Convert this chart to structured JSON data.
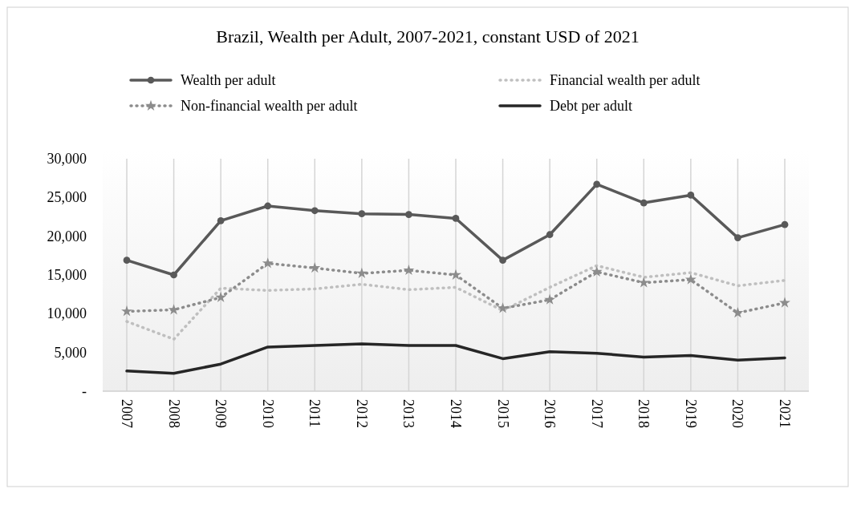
{
  "chart_data": {
    "type": "line",
    "title": "Brazil, Wealth per Adult, 2007-2021, constant USD of 2021",
    "categories": [
      "2007",
      "2008",
      "2009",
      "2010",
      "2011",
      "2012",
      "2013",
      "2014",
      "2015",
      "2016",
      "2017",
      "2018",
      "2019",
      "2020",
      "2021"
    ],
    "series": [
      {
        "name": "Wealth per adult",
        "color": "#595959",
        "marker": "circle",
        "line_style": "solid",
        "values": [
          16900,
          15000,
          22000,
          23900,
          23300,
          22900,
          22800,
          22300,
          16900,
          20200,
          26700,
          24300,
          25300,
          19800,
          21500
        ]
      },
      {
        "name": "Financial wealth per adult",
        "color": "#bfbfbf",
        "marker": "none",
        "line_style": "dotted",
        "values": [
          9000,
          6700,
          13300,
          13000,
          13200,
          13800,
          13100,
          13400,
          10400,
          13400,
          16200,
          14700,
          15300,
          13600,
          14300
        ]
      },
      {
        "name": "Non-financial wealth per adult",
        "color": "#8c8c8c",
        "marker": "star",
        "line_style": "dotted",
        "values": [
          10300,
          10500,
          12100,
          16500,
          15900,
          15200,
          15600,
          15000,
          10700,
          11800,
          15400,
          14000,
          14400,
          10100,
          11400
        ]
      },
      {
        "name": "Debt per adult",
        "color": "#262626",
        "marker": "none",
        "line_style": "solid",
        "values": [
          2600,
          2300,
          3500,
          5700,
          5900,
          6100,
          5900,
          5900,
          4200,
          5100,
          4900,
          4400,
          4600,
          4000,
          4300
        ]
      }
    ],
    "ylim": [
      0,
      30000
    ],
    "yticks": [
      {
        "value": 0,
        "label": "-"
      },
      {
        "value": 5000,
        "label": "5,000"
      },
      {
        "value": 10000,
        "label": "10,000"
      },
      {
        "value": 15000,
        "label": "15,000"
      },
      {
        "value": 20000,
        "label": "20,000"
      },
      {
        "value": 25000,
        "label": "25,000"
      },
      {
        "value": 30000,
        "label": "30,000"
      }
    ],
    "grid": "x",
    "legend": "top"
  }
}
